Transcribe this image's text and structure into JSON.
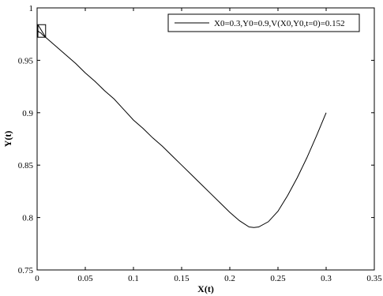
{
  "chart_data": {
    "type": "line",
    "title": "",
    "xlabel": "X(t)",
    "ylabel": "Y(t)",
    "xlim": [
      0,
      0.35
    ],
    "ylim": [
      0.75,
      1.0
    ],
    "xticks": [
      "0",
      "0.05",
      "0.1",
      "0.15",
      "0.2",
      "0.25",
      "0.3",
      "0.35"
    ],
    "yticks": [
      "0.75",
      "0.8",
      "0.85",
      "0.9",
      "0.95",
      "1"
    ],
    "grid": false,
    "legend_position": "top-right",
    "series": [
      {
        "name": "X0=0.3,Y0=0.9,V(X0,Y0,t=0)=0.152",
        "color": "#000000",
        "x": [
          0.0,
          0.002,
          0.004,
          0.006,
          0.01,
          0.02,
          0.03,
          0.04,
          0.05,
          0.06,
          0.07,
          0.08,
          0.09,
          0.1,
          0.11,
          0.12,
          0.13,
          0.14,
          0.15,
          0.16,
          0.17,
          0.18,
          0.19,
          0.2,
          0.21,
          0.22,
          0.225,
          0.23,
          0.24,
          0.25,
          0.26,
          0.27,
          0.28,
          0.29,
          0.3
        ],
        "y": [
          0.979,
          0.977,
          0.976,
          0.974,
          0.971,
          0.963,
          0.955,
          0.947,
          0.938,
          0.93,
          0.921,
          0.913,
          0.903,
          0.893,
          0.885,
          0.876,
          0.868,
          0.859,
          0.85,
          0.841,
          0.832,
          0.823,
          0.814,
          0.805,
          0.797,
          0.791,
          0.7905,
          0.791,
          0.796,
          0.806,
          0.821,
          0.838,
          0.857,
          0.878,
          0.9
        ]
      }
    ],
    "annotations": [
      {
        "type": "box",
        "x0": 0.0,
        "x1": 0.008,
        "y0": 0.972,
        "y1": 0.984
      }
    ]
  }
}
